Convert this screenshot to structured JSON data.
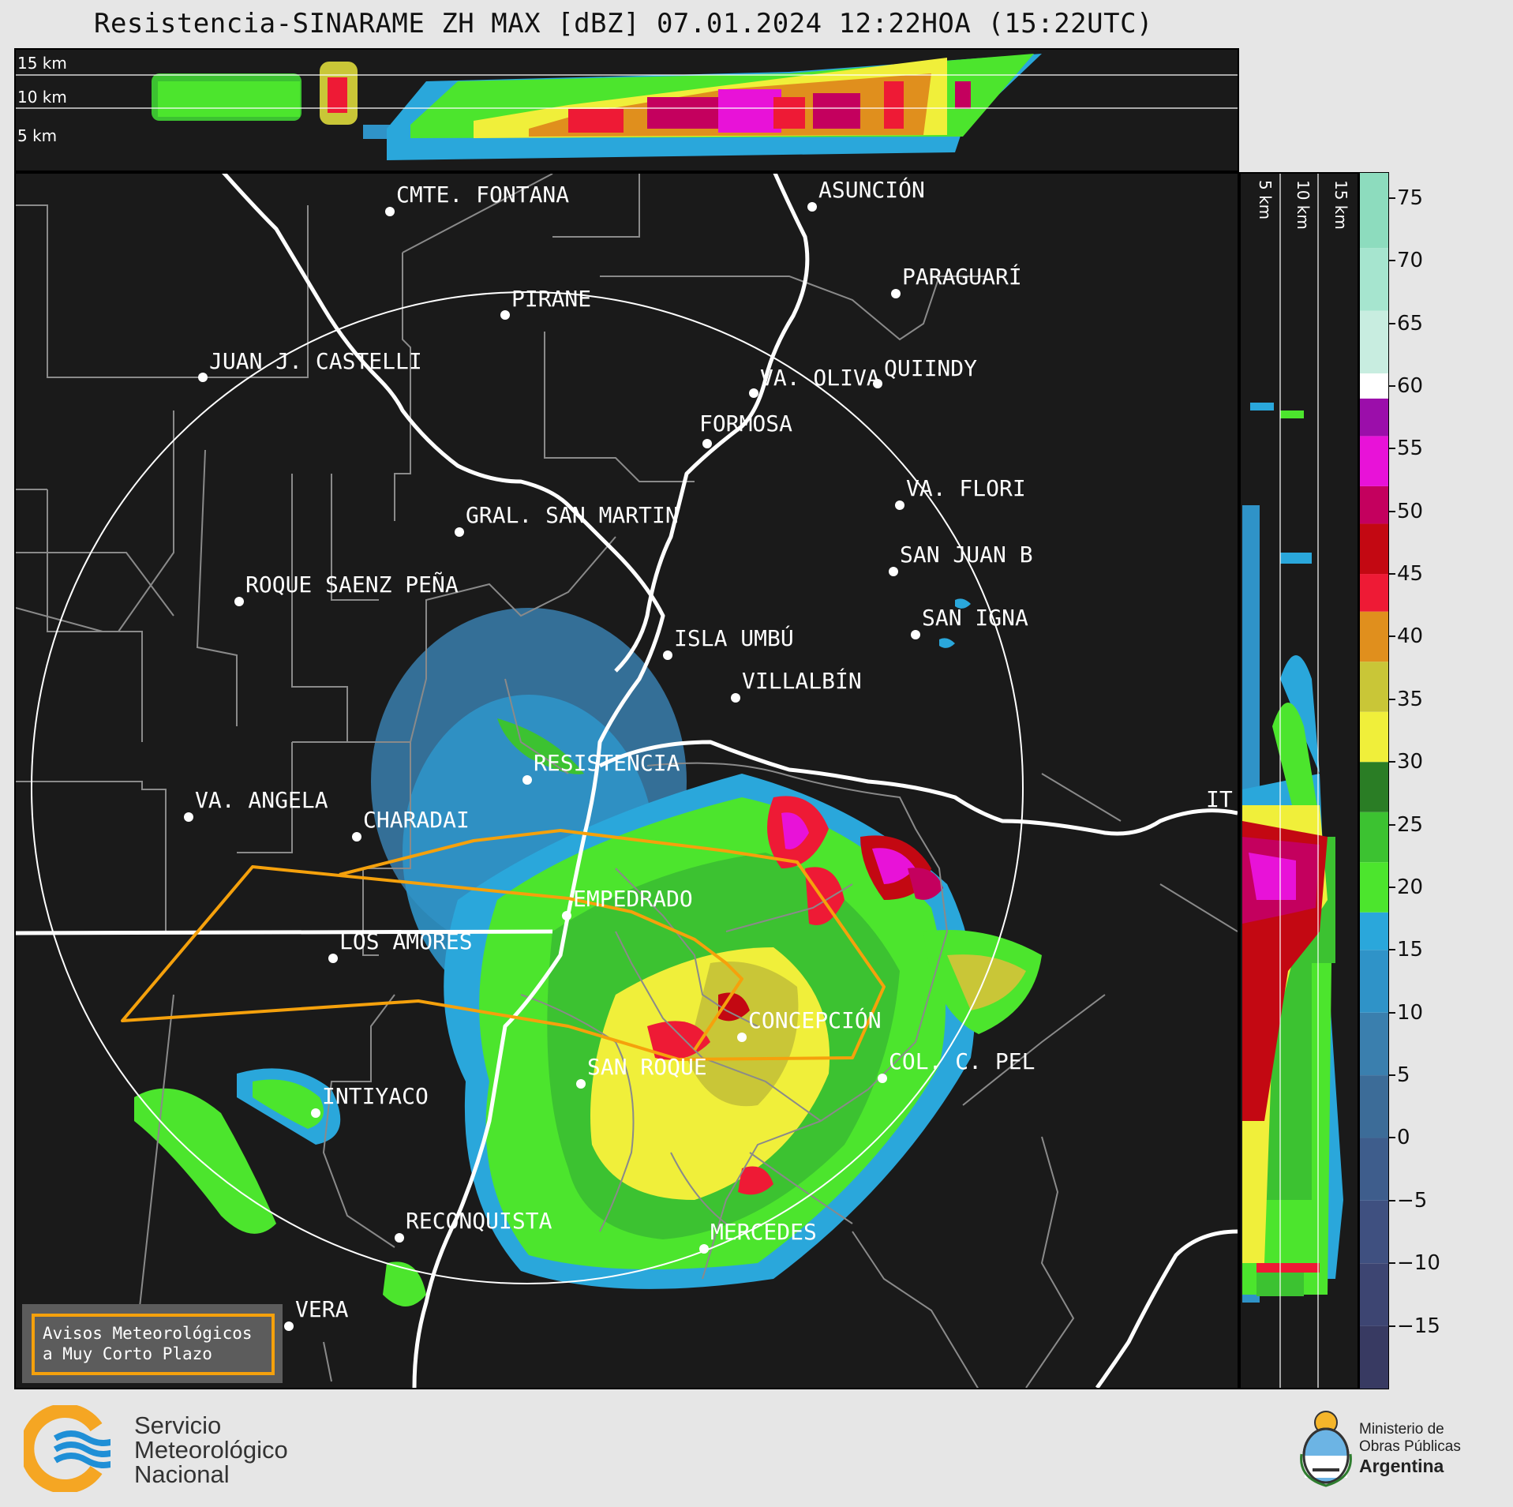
{
  "title": "Resistencia-SINARAME ZH MAX [dBZ] 07.01.2024 12:22HOA (15:22UTC)",
  "top_panel": {
    "height_labels": [
      "15 km",
      "10 km",
      "5 km"
    ]
  },
  "side_panel": {
    "height_labels": [
      "5 km",
      "10 km",
      "15 km"
    ]
  },
  "colorbar": {
    "unit": "dBZ",
    "ticks": [
      "75",
      "70",
      "65",
      "60",
      "55",
      "50",
      "45",
      "40",
      "35",
      "30",
      "25",
      "20",
      "15",
      "10",
      "5",
      "0",
      "−5",
      "−10",
      "−15"
    ],
    "bands": [
      {
        "from": -20,
        "to": -15,
        "color": "#383a62"
      },
      {
        "from": -15,
        "to": -10,
        "color": "#3d4572"
      },
      {
        "from": -10,
        "to": -5,
        "color": "#3f5080"
      },
      {
        "from": -5,
        "to": 0,
        "color": "#3e5d8c"
      },
      {
        "from": 0,
        "to": 5,
        "color": "#3c6c98"
      },
      {
        "from": 5,
        "to": 10,
        "color": "#3a7fae"
      },
      {
        "from": 10,
        "to": 15,
        "color": "#2f93c8"
      },
      {
        "from": 15,
        "to": 18,
        "color": "#2aa7db"
      },
      {
        "from": 18,
        "to": 22,
        "color": "#4ce52d"
      },
      {
        "from": 22,
        "to": 26,
        "color": "#3cc231"
      },
      {
        "from": 26,
        "to": 30,
        "color": "#2a7d25"
      },
      {
        "from": 30,
        "to": 34,
        "color": "#f0ef3a"
      },
      {
        "from": 34,
        "to": 38,
        "color": "#c9c637"
      },
      {
        "from": 38,
        "to": 42,
        "color": "#e08f1d"
      },
      {
        "from": 42,
        "to": 45,
        "color": "#ee1a35"
      },
      {
        "from": 45,
        "to": 49,
        "color": "#c30812"
      },
      {
        "from": 49,
        "to": 52,
        "color": "#c4005e"
      },
      {
        "from": 52,
        "to": 56,
        "color": "#e812d8"
      },
      {
        "from": 56,
        "to": 59,
        "color": "#9b0eaa"
      },
      {
        "from": 59,
        "to": 61,
        "color": "#ffffff"
      },
      {
        "from": 61,
        "to": 66,
        "color": "#c8ede0"
      },
      {
        "from": 66,
        "to": 71,
        "color": "#a6e5cf"
      },
      {
        "from": 71,
        "to": 77,
        "color": "#8ddcbe"
      }
    ]
  },
  "cities": [
    {
      "name": "CMTE. FONTANA"
    },
    {
      "name": "ASUNCIÓN"
    },
    {
      "name": "PIRANE"
    },
    {
      "name": "PARAGUARÍ"
    },
    {
      "name": "JUAN J. CASTELLI"
    },
    {
      "name": "VA. OLIVA"
    },
    {
      "name": "QUIINDY"
    },
    {
      "name": "FORMOSA"
    },
    {
      "name": "VA. FLORI"
    },
    {
      "name": "GRAL. SAN MARTIN"
    },
    {
      "name": "SAN JUAN B"
    },
    {
      "name": "ROQUE SAENZ PEÑA"
    },
    {
      "name": "SAN IGNA"
    },
    {
      "name": "ISLA UMBÚ"
    },
    {
      "name": "VILLALBÍN"
    },
    {
      "name": "RESISTENCIA"
    },
    {
      "name": "VA. ANGELA"
    },
    {
      "name": "CHARADAI"
    },
    {
      "name": "IT"
    },
    {
      "name": "EMPEDRADO"
    },
    {
      "name": "LOS AMORES"
    },
    {
      "name": "CONCEPCIÓN"
    },
    {
      "name": "SAN ROQUE"
    },
    {
      "name": "COL. C. PEL"
    },
    {
      "name": "INTIYACO"
    },
    {
      "name": "RECONQUISTA"
    },
    {
      "name": "MERCEDES"
    },
    {
      "name": "VERA"
    }
  ],
  "aviso": {
    "line1": "Avisos Meteorológicos",
    "line2": "a Muy Corto Plazo"
  },
  "footer": {
    "smn": [
      "Servicio",
      "Meteorológico",
      "Nacional"
    ],
    "mop": [
      "Ministerio de",
      "Obras Públicas",
      "Argentina"
    ]
  }
}
